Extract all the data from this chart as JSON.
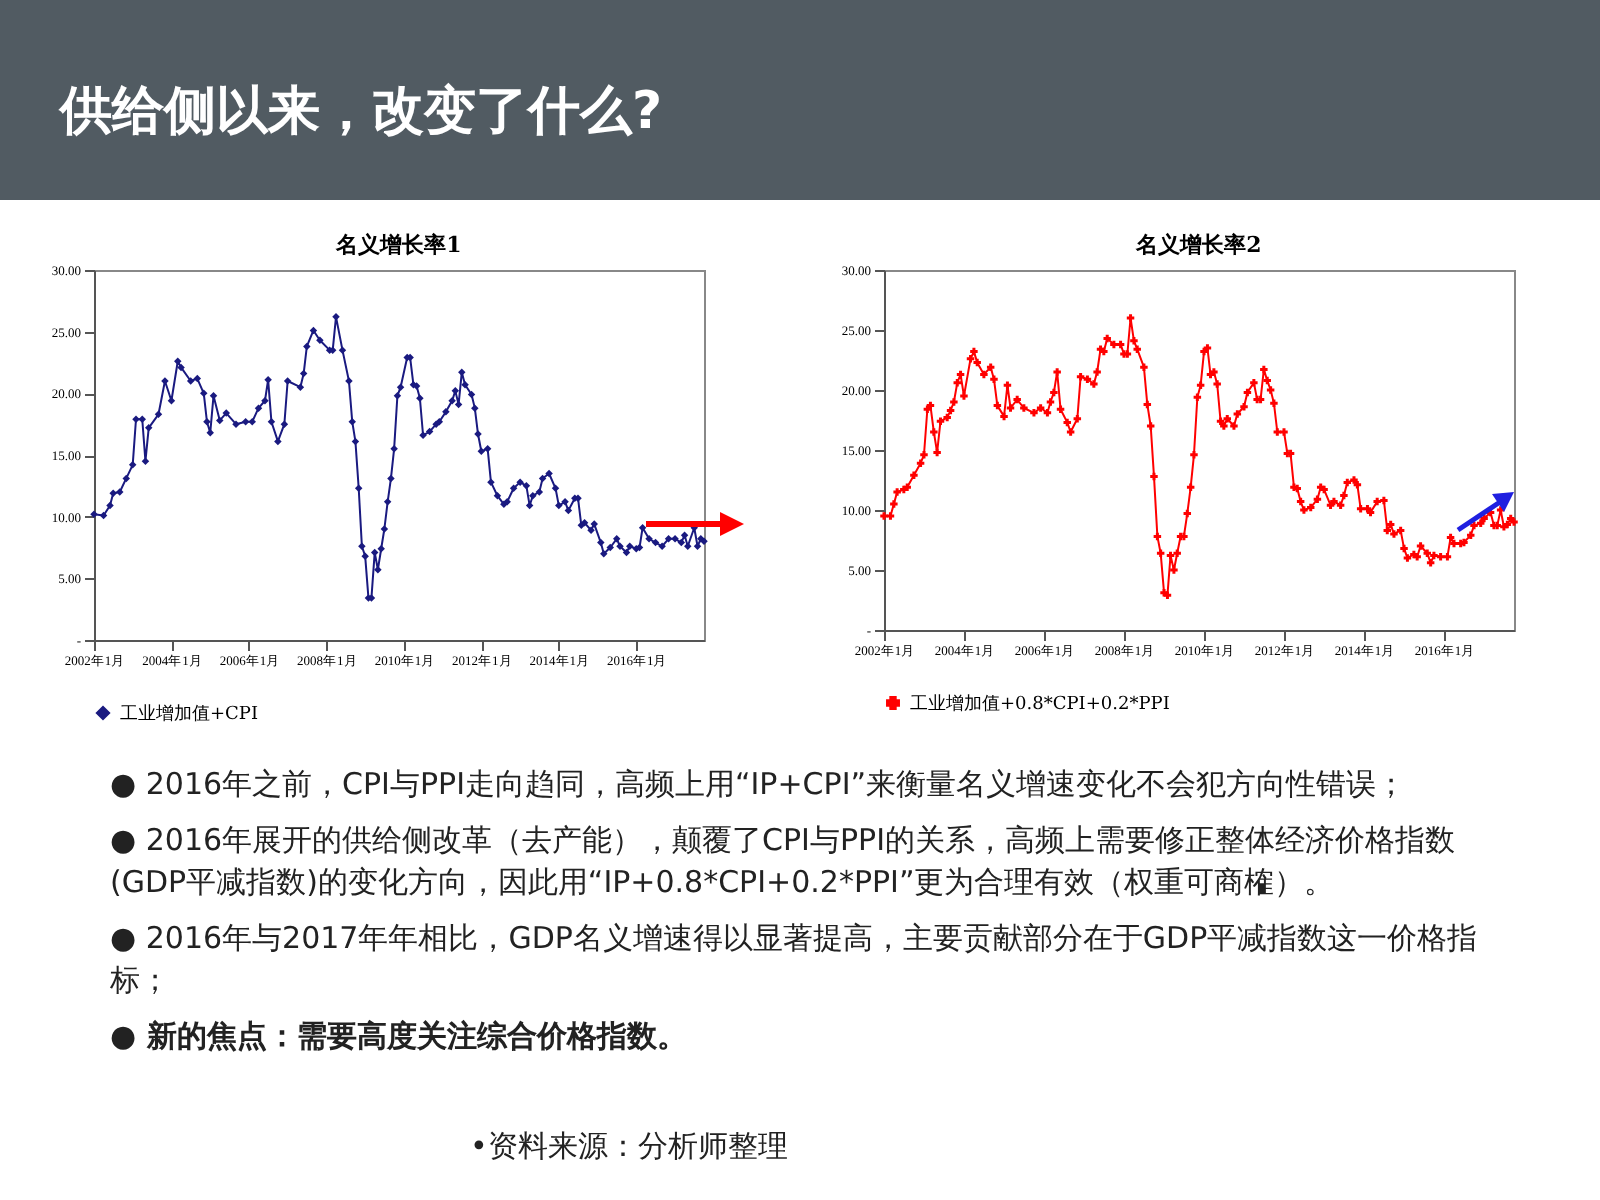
{
  "chart_data": [
    {
      "type": "line",
      "title": "名义增长率1",
      "legend": "bottom",
      "marker": "diamond",
      "grid": false,
      "xlim": [
        "2002-01",
        "2017-10"
      ],
      "xticks": [
        {
          "value": "2002-01",
          "label": "2002年1月"
        },
        {
          "value": "2004-01",
          "label": "2004年1月"
        },
        {
          "value": "2006-01",
          "label": "2006年1月"
        },
        {
          "value": "2008-01",
          "label": "2008年1月"
        },
        {
          "value": "2010-01",
          "label": "2010年1月"
        },
        {
          "value": "2012-01",
          "label": "2012年1月"
        },
        {
          "value": "2014-01",
          "label": "2014年1月"
        },
        {
          "value": "2016-01",
          "label": "2016年1月"
        }
      ],
      "ylim": [
        0,
        30
      ],
      "yticks": [
        {
          "value": 0,
          "label": "-"
        },
        {
          "value": 5,
          "label": "5.00"
        },
        {
          "value": 10,
          "label": "10.00"
        },
        {
          "value": 15,
          "label": "15.00"
        },
        {
          "value": 20,
          "label": "20.00"
        },
        {
          "value": 25,
          "label": "25.00"
        },
        {
          "value": 30,
          "label": "30.00"
        }
      ],
      "series": [
        {
          "name": "工业增加值+CPI",
          "color": "#1a1a80",
          "x": [
            "2002-01",
            "2002-04",
            "2002-06",
            "2002-07",
            "2002-09",
            "2002-11",
            "2003-01",
            "2003-02",
            "2003-04",
            "2003-05",
            "2003-06",
            "2003-09",
            "2003-11",
            "2004-01",
            "2004-03",
            "2004-04",
            "2004-07",
            "2004-09",
            "2004-11",
            "2004-12",
            "2005-01",
            "2005-02",
            "2005-04",
            "2005-06",
            "2005-09",
            "2005-12",
            "2006-02",
            "2006-04",
            "2006-06",
            "2006-07",
            "2006-08",
            "2006-10",
            "2006-12",
            "2007-01",
            "2007-05",
            "2007-06",
            "2007-07",
            "2007-09",
            "2007-11",
            "2008-02",
            "2008-03",
            "2008-04",
            "2008-06",
            "2008-08",
            "2008-09",
            "2008-10",
            "2008-11",
            "2008-12",
            "2009-01",
            "2009-02",
            "2009-03",
            "2009-04",
            "2009-05",
            "2009-06",
            "2009-07",
            "2009-08",
            "2009-09",
            "2009-10",
            "2009-11",
            "2009-12",
            "2010-02",
            "2010-03",
            "2010-04",
            "2010-05",
            "2010-06",
            "2010-07",
            "2010-09",
            "2010-11",
            "2010-12",
            "2011-02",
            "2011-04",
            "2011-05",
            "2011-06",
            "2011-07",
            "2011-08",
            "2011-10",
            "2011-11",
            "2011-12",
            "2012-01",
            "2012-03",
            "2012-04",
            "2012-06",
            "2012-08",
            "2012-09",
            "2012-11",
            "2013-01",
            "2013-03",
            "2013-04",
            "2013-05",
            "2013-07",
            "2013-08",
            "2013-10",
            "2013-12",
            "2014-01",
            "2014-03",
            "2014-04",
            "2014-06",
            "2014-07",
            "2014-08",
            "2014-09",
            "2014-11",
            "2014-12",
            "2015-02",
            "2015-03",
            "2015-05",
            "2015-07",
            "2015-08",
            "2015-10",
            "2015-11",
            "2016-01",
            "2016-02",
            "2016-03",
            "2016-05",
            "2016-07",
            "2016-09",
            "2016-11",
            "2017-01",
            "2017-03",
            "2017-04",
            "2017-05",
            "2017-07",
            "2017-08",
            "2017-09",
            "2017-10"
          ],
          "values": [
            10.2,
            10.1,
            10.9,
            11.9,
            12.0,
            13.1,
            14.2,
            17.9,
            17.9,
            14.5,
            17.2,
            18.3,
            21.0,
            19.4,
            22.6,
            22.1,
            21.0,
            21.2,
            20.0,
            17.7,
            16.8,
            19.8,
            17.8,
            18.4,
            17.5,
            17.7,
            17.7,
            18.8,
            19.4,
            21.1,
            17.7,
            16.1,
            17.5,
            21.0,
            20.5,
            21.6,
            23.8,
            25.1,
            24.3,
            23.5,
            23.5,
            26.2,
            23.5,
            21.0,
            17.7,
            16.1,
            12.3,
            7.6,
            6.8,
            3.4,
            3.4,
            7.1,
            5.7,
            7.4,
            9.0,
            11.2,
            13.1,
            15.5,
            19.8,
            20.5,
            22.9,
            22.9,
            20.7,
            20.6,
            19.6,
            16.6,
            16.9,
            17.5,
            17.7,
            18.5,
            19.4,
            20.2,
            19.1,
            21.7,
            20.7,
            19.9,
            18.8,
            16.7,
            15.3,
            15.5,
            12.8,
            11.7,
            11.0,
            11.2,
            12.3,
            12.8,
            12.5,
            10.9,
            11.7,
            12.0,
            13.1,
            13.5,
            12.3,
            10.9,
            11.2,
            10.5,
            11.5,
            11.5,
            9.3,
            9.5,
            8.9,
            9.4,
            7.9,
            7.0,
            7.5,
            8.2,
            7.6,
            7.1,
            7.6,
            7.4,
            7.5,
            9.1,
            8.2,
            7.9,
            7.6,
            8.2,
            8.2,
            7.9,
            8.5,
            7.6,
            9.1,
            7.6,
            8.2,
            8.0
          ]
        }
      ]
    },
    {
      "type": "line",
      "title": "名义增长率2",
      "legend": "bottom",
      "marker": "cross",
      "grid": false,
      "xlim": [
        "2002-01",
        "2017-10"
      ],
      "xticks": [
        {
          "value": "2002-01",
          "label": "2002年1月"
        },
        {
          "value": "2004-01",
          "label": "2004年1月"
        },
        {
          "value": "2006-01",
          "label": "2006年1月"
        },
        {
          "value": "2008-01",
          "label": "2008年1月"
        },
        {
          "value": "2010-01",
          "label": "2010年1月"
        },
        {
          "value": "2012-01",
          "label": "2012年1月"
        },
        {
          "value": "2014-01",
          "label": "2014年1月"
        },
        {
          "value": "2016-01",
          "label": "2016年1月"
        }
      ],
      "ylim": [
        0,
        30
      ],
      "yticks": [
        {
          "value": 0,
          "label": "-"
        },
        {
          "value": 5,
          "label": "5.00"
        },
        {
          "value": 10,
          "label": "10.00"
        },
        {
          "value": 15,
          "label": "15.00"
        },
        {
          "value": 20,
          "label": "20.00"
        },
        {
          "value": 25,
          "label": "25.00"
        },
        {
          "value": 30,
          "label": "30.00"
        }
      ],
      "series": [
        {
          "name": "工业增加值+0.8*CPI+0.2*PPI",
          "color": "#ff0000",
          "x": [
            "2002-01",
            "2002-03",
            "2002-04",
            "2002-05",
            "2002-07",
            "2002-08",
            "2002-10",
            "2002-12",
            "2003-01",
            "2003-02",
            "2003-03",
            "2003-04",
            "2003-05",
            "2003-06",
            "2003-08",
            "2003-09",
            "2003-10",
            "2003-11",
            "2003-12",
            "2004-01",
            "2004-03",
            "2004-04",
            "2004-05",
            "2004-07",
            "2004-09",
            "2004-10",
            "2004-11",
            "2005-01",
            "2005-02",
            "2005-03",
            "2005-05",
            "2005-07",
            "2005-10",
            "2005-12",
            "2006-02",
            "2006-03",
            "2006-04",
            "2006-05",
            "2006-06",
            "2006-08",
            "2006-09",
            "2006-11",
            "2006-12",
            "2007-02",
            "2007-04",
            "2007-05",
            "2007-06",
            "2007-07",
            "2007-08",
            "2007-10",
            "2007-12",
            "2008-01",
            "2008-02",
            "2008-03",
            "2008-04",
            "2008-05",
            "2008-07",
            "2008-08",
            "2008-09",
            "2008-10",
            "2008-11",
            "2008-12",
            "2009-01",
            "2009-02",
            "2009-03",
            "2009-04",
            "2009-05",
            "2009-06",
            "2009-07",
            "2009-08",
            "2009-09",
            "2009-10",
            "2009-11",
            "2009-12",
            "2010-01",
            "2010-02",
            "2010-03",
            "2010-04",
            "2010-05",
            "2010-06",
            "2010-07",
            "2010-08",
            "2010-10",
            "2010-11",
            "2011-01",
            "2011-02",
            "2011-04",
            "2011-05",
            "2011-06",
            "2011-07",
            "2011-08",
            "2011-09",
            "2011-10",
            "2011-11",
            "2012-01",
            "2012-02",
            "2012-03",
            "2012-04",
            "2012-05",
            "2012-06",
            "2012-07",
            "2012-09",
            "2012-11",
            "2012-12",
            "2013-01",
            "2013-03",
            "2013-04",
            "2013-06",
            "2013-07",
            "2013-08",
            "2013-10",
            "2013-11",
            "2013-12",
            "2014-02",
            "2014-03",
            "2014-05",
            "2014-07",
            "2014-08",
            "2014-09",
            "2014-10",
            "2014-12",
            "2015-01",
            "2015-02",
            "2015-04",
            "2015-05",
            "2015-06",
            "2015-08",
            "2015-09",
            "2015-10",
            "2015-12",
            "2016-02",
            "2016-03",
            "2016-04",
            "2016-06",
            "2016-07",
            "2016-09",
            "2016-10",
            "2016-12",
            "2017-01",
            "2017-03",
            "2017-04",
            "2017-05",
            "2017-06",
            "2017-07",
            "2017-08",
            "2017-09",
            "2017-10"
          ],
          "values": [
            9.5,
            9.5,
            10.5,
            11.5,
            11.7,
            11.9,
            12.9,
            13.9,
            14.6,
            18.4,
            18.7,
            16.5,
            14.8,
            17.4,
            17.7,
            18.3,
            19.0,
            20.6,
            21.3,
            19.5,
            22.6,
            23.2,
            22.3,
            21.3,
            21.9,
            20.9,
            18.7,
            17.8,
            20.4,
            18.5,
            19.2,
            18.5,
            18.1,
            18.5,
            18.1,
            19.0,
            19.8,
            21.5,
            18.4,
            17.3,
            16.5,
            17.6,
            21.1,
            20.9,
            20.5,
            21.5,
            23.4,
            23.2,
            24.3,
            23.8,
            23.8,
            23.0,
            23.0,
            26.0,
            24.1,
            23.4,
            21.9,
            18.8,
            17.0,
            12.8,
            7.8,
            6.4,
            3.1,
            2.9,
            6.2,
            5.0,
            6.4,
            7.8,
            7.8,
            9.7,
            11.9,
            14.6,
            19.4,
            20.4,
            23.2,
            23.5,
            21.3,
            21.5,
            20.5,
            17.4,
            17.0,
            17.6,
            17.0,
            18.0,
            18.6,
            19.8,
            20.6,
            19.2,
            19.2,
            21.7,
            20.8,
            20.0,
            18.9,
            16.5,
            16.5,
            14.7,
            14.7,
            11.9,
            11.8,
            10.7,
            10.0,
            10.2,
            10.9,
            11.9,
            11.7,
            10.4,
            10.7,
            10.4,
            11.2,
            12.3,
            12.5,
            12.1,
            10.1,
            10.1,
            9.8,
            10.7,
            10.8,
            8.3,
            8.8,
            8.0,
            8.3,
            6.8,
            6.0,
            6.3,
            6.1,
            7.0,
            6.4,
            5.6,
            6.2,
            6.1,
            6.1,
            7.7,
            7.2,
            7.2,
            7.3,
            7.9,
            8.7,
            8.9,
            9.3,
            9.8,
            8.7,
            8.7,
            10.0,
            8.6,
            8.8,
            9.3,
            9.0
          ]
        }
      ]
    },
    {
      "type": "other",
      "title": "供给侧以来，改变了什么?",
      "annotations": [
        "● 2016年之前，CPI与PPI走向趋同，高频上用“IP+CPI”来衡量名义增速变化不会犯方向性错误；",
        "● 2016年展开的供给侧改革（去产能），颠覆了CPI与PPI的关系，高频上需要修正整体经济价格指数(GDP平减指数)的变化方向，因此用“IP+0.8*CPI+0.2*PPI”更为合理有效（权重可商榷）。",
        "● 2016年与2017年年相比，GDP名义增速得以显著提高，主要贡献部分在于GDP平减指数这一价格指标；",
        "● 新的焦点：需要高度关注综合价格指数。",
        "•资料来源：分析师整理"
      ]
    }
  ]
}
